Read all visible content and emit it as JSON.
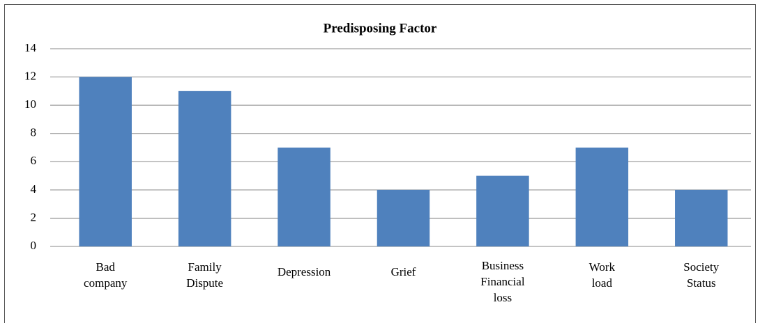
{
  "chart_data": {
    "type": "bar",
    "title": "Predisposing Factor",
    "categories": [
      "Bad company",
      "Family Dispute",
      "Depression",
      "Grief",
      "Business Financial loss",
      "Work load",
      "Society Status"
    ],
    "values": [
      12,
      11,
      7,
      4,
      5,
      7,
      4
    ],
    "color": "#4f81bd",
    "ylim": [
      0,
      14
    ],
    "yticks": [
      0,
      2,
      4,
      6,
      8,
      10,
      12,
      14
    ],
    "grid": true
  }
}
